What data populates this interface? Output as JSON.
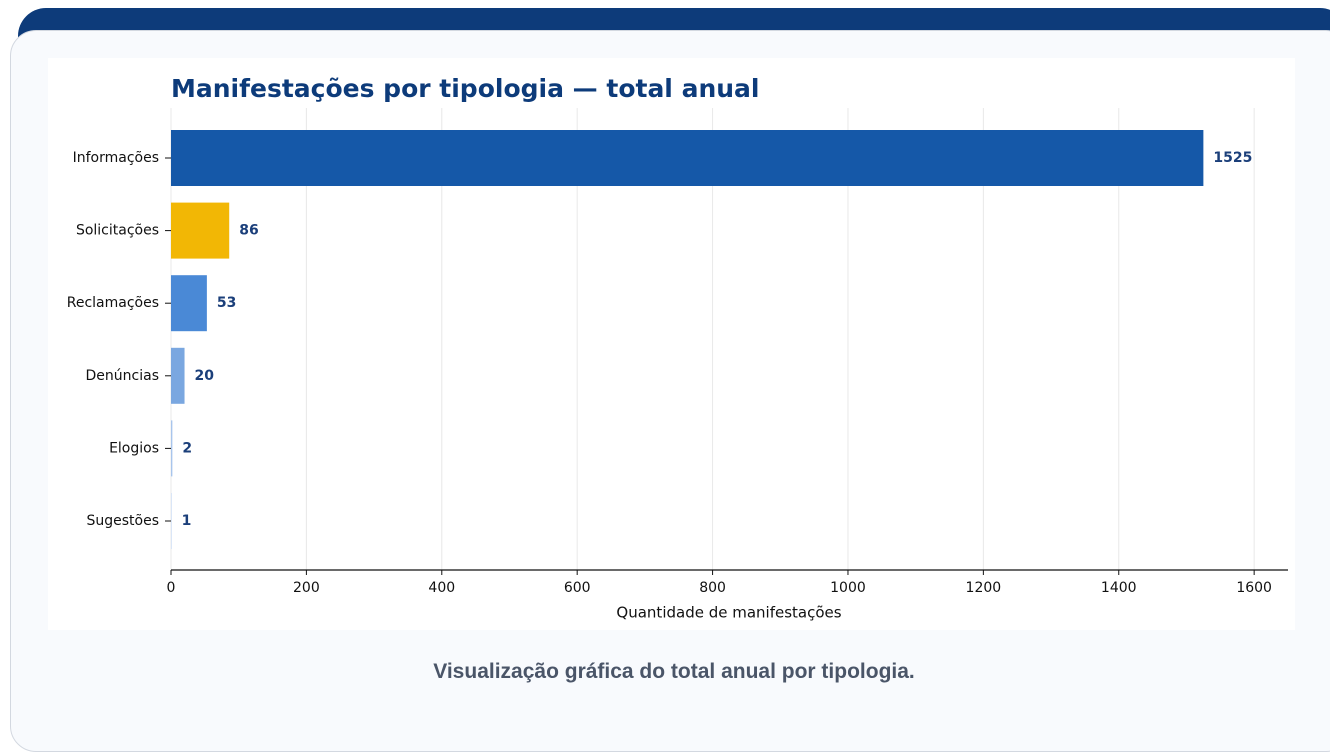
{
  "chart_data": {
    "type": "bar",
    "orientation": "horizontal",
    "title": "Manifestações por tipologia — total anual",
    "xlabel": "Quantidade de manifestações",
    "categories": [
      "Informações",
      "Solicitações",
      "Reclamações",
      "Denúncias",
      "Elogios",
      "Sugestões"
    ],
    "values": [
      1525,
      86,
      53,
      20,
      2,
      1
    ],
    "colors": [
      "#1558a8",
      "#f2b705",
      "#4a89d6",
      "#7aa7e0",
      "#a8c5ec",
      "#c9dbf3"
    ],
    "xlim": [
      0,
      1650
    ],
    "xticks": [
      0,
      200,
      400,
      600,
      800,
      1000,
      1200,
      1400,
      1600
    ],
    "grid": true
  },
  "caption": "Visualização gráfica do total anual por tipologia."
}
